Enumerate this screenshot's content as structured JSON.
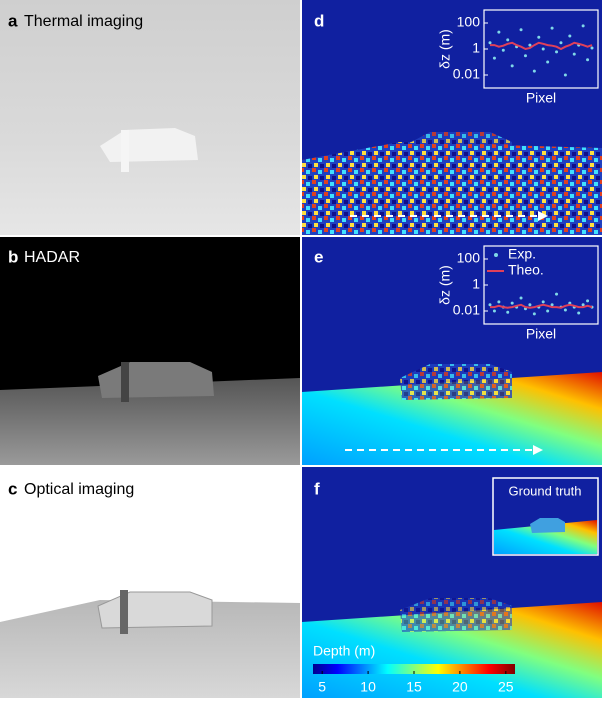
{
  "panels": [
    {
      "letter": "a",
      "title": "Thermal imaging"
    },
    {
      "letter": "b",
      "title": "HADAR"
    },
    {
      "letter": "c",
      "title": "Optical imaging"
    },
    {
      "letter": "d"
    },
    {
      "letter": "e"
    },
    {
      "letter": "f"
    }
  ],
  "ground_truth": "Ground truth",
  "chart_data": [
    {
      "type": "scatter-line",
      "ylabel": "δz (m)",
      "xlabel": "Pixel",
      "log_y": true,
      "ylim": [
        0.001,
        1000
      ],
      "yticks": [
        100,
        1,
        0.01
      ],
      "series": [
        {
          "color": "#7fd8e8",
          "values": [
            3,
            0.2,
            20,
            0.8,
            5,
            0.05,
            1.5,
            30,
            0.3,
            2,
            0.02,
            8,
            1,
            0.1,
            40,
            0.6,
            3,
            0.01,
            10,
            0.4,
            2,
            60,
            0.15,
            1.2
          ]
        },
        {
          "color": "#e0405a",
          "values": [
            2,
            2,
            1.5,
            1.8,
            2.5,
            3,
            2,
            1.5,
            1,
            1.2,
            2,
            3,
            2.5,
            2,
            1.8,
            1.5,
            1,
            1.5,
            2,
            3,
            2.5,
            2,
            1.5,
            2
          ]
        }
      ]
    },
    {
      "type": "scatter-line",
      "ylabel": "δz (m)",
      "xlabel": "Pixel",
      "log_y": true,
      "ylim": [
        0.001,
        1000
      ],
      "yticks": [
        100,
        1,
        0.01
      ],
      "series": [
        {
          "name": "Exp.",
          "color": "#7fd8e8",
          "values": [
            0.03,
            0.01,
            0.05,
            0.02,
            0.008,
            0.04,
            0.02,
            0.1,
            0.015,
            0.03,
            0.006,
            0.02,
            0.05,
            0.01,
            0.03,
            0.2,
            0.02,
            0.012,
            0.04,
            0.02,
            0.007,
            0.03,
            0.06,
            0.02
          ]
        },
        {
          "name": "Theo.",
          "color": "#e0405a",
          "values": [
            0.02,
            0.02,
            0.025,
            0.02,
            0.018,
            0.02,
            0.025,
            0.03,
            0.02,
            0.018,
            0.02,
            0.025,
            0.03,
            0.025,
            0.02,
            0.02,
            0.018,
            0.025,
            0.03,
            0.025,
            0.02,
            0.02,
            0.025,
            0.02
          ]
        }
      ]
    },
    {
      "type": "colorbar",
      "title": "Depth (m)",
      "xlim": [
        4,
        26
      ],
      "xticks": [
        5,
        10,
        15,
        20,
        25
      ]
    }
  ]
}
